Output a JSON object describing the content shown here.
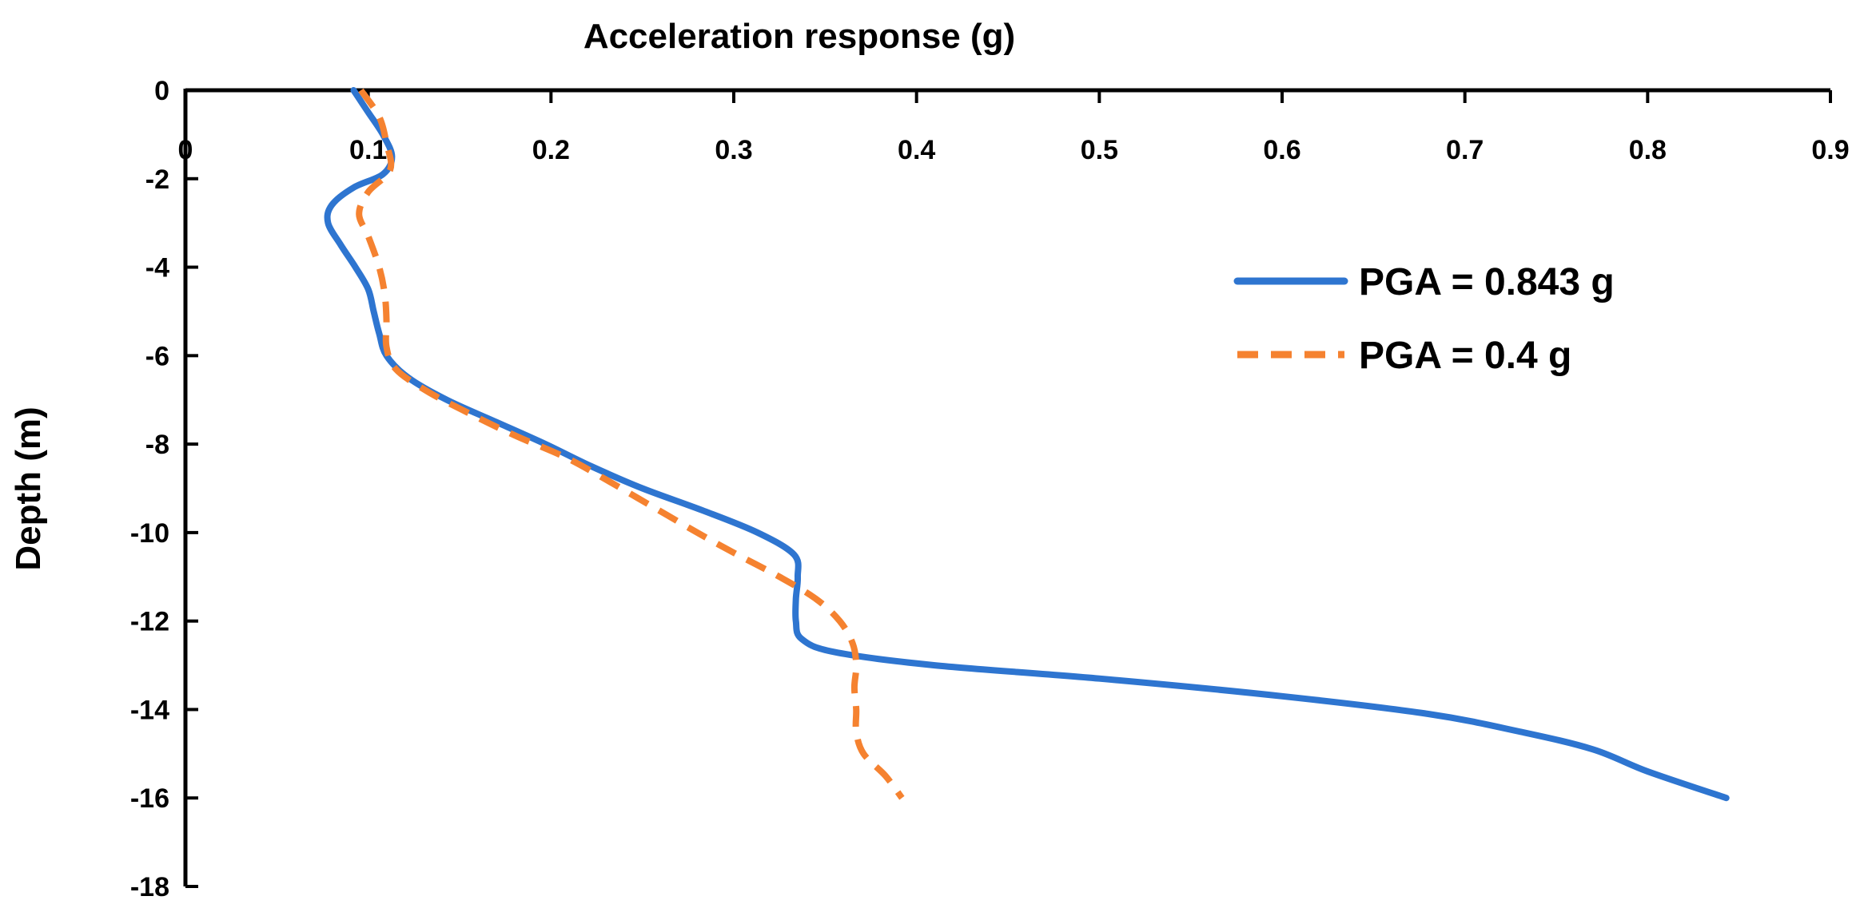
{
  "chart_data": {
    "type": "line",
    "title": "",
    "xlabel": "Acceleration response (g)",
    "ylabel": "Depth (m)",
    "xlim": [
      0,
      0.9
    ],
    "ylim": [
      -18,
      0
    ],
    "x_ticks": [
      0,
      0.1,
      0.2,
      0.3,
      0.4,
      0.5,
      0.6,
      0.7,
      0.8,
      0.9
    ],
    "x_tick_labels": [
      "0",
      "0.1",
      "0.2",
      "0.3",
      "0.4",
      "0.5",
      "0.6",
      "0.7",
      "0.8",
      "0.9"
    ],
    "y_ticks": [
      0,
      -2,
      -4,
      -6,
      -8,
      -10,
      -12,
      -14,
      -16,
      -18
    ],
    "y_tick_labels": [
      "0",
      "-2",
      "-4",
      "-6",
      "-8",
      "-10",
      "-12",
      "-14",
      "-16",
      "-18"
    ],
    "x_axis_position": "top",
    "grid": false,
    "legend_position": "right",
    "series": [
      {
        "name": "PGA = 0.843 g",
        "color": "#2E75D0",
        "style": "solid",
        "points": [
          [
            0.092,
            0.0
          ],
          [
            0.1,
            -0.5
          ],
          [
            0.108,
            -1.0
          ],
          [
            0.113,
            -1.5
          ],
          [
            0.108,
            -1.9
          ],
          [
            0.092,
            -2.2
          ],
          [
            0.08,
            -2.6
          ],
          [
            0.078,
            -3.0
          ],
          [
            0.085,
            -3.5
          ],
          [
            0.093,
            -4.0
          ],
          [
            0.1,
            -4.5
          ],
          [
            0.103,
            -5.0
          ],
          [
            0.106,
            -5.5
          ],
          [
            0.11,
            -6.0
          ],
          [
            0.122,
            -6.5
          ],
          [
            0.143,
            -7.0
          ],
          [
            0.17,
            -7.5
          ],
          [
            0.197,
            -8.0
          ],
          [
            0.222,
            -8.5
          ],
          [
            0.25,
            -9.0
          ],
          [
            0.283,
            -9.5
          ],
          [
            0.313,
            -10.0
          ],
          [
            0.333,
            -10.5
          ],
          [
            0.335,
            -11.0
          ],
          [
            0.334,
            -11.5
          ],
          [
            0.334,
            -12.0
          ],
          [
            0.337,
            -12.4
          ],
          [
            0.355,
            -12.7
          ],
          [
            0.41,
            -13.0
          ],
          [
            0.5,
            -13.3
          ],
          [
            0.6,
            -13.7
          ],
          [
            0.68,
            -14.1
          ],
          [
            0.73,
            -14.5
          ],
          [
            0.77,
            -14.9
          ],
          [
            0.8,
            -15.4
          ],
          [
            0.843,
            -16.0
          ]
        ]
      },
      {
        "name": "PGA = 0.4 g",
        "color": "#F58230",
        "style": "dashed",
        "points": [
          [
            0.096,
            0.0
          ],
          [
            0.106,
            -0.6
          ],
          [
            0.11,
            -1.2
          ],
          [
            0.112,
            -1.8
          ],
          [
            0.1,
            -2.3
          ],
          [
            0.095,
            -2.8
          ],
          [
            0.1,
            -3.3
          ],
          [
            0.106,
            -4.0
          ],
          [
            0.109,
            -4.6
          ],
          [
            0.11,
            -5.2
          ],
          [
            0.11,
            -5.8
          ],
          [
            0.115,
            -6.3
          ],
          [
            0.132,
            -6.8
          ],
          [
            0.155,
            -7.3
          ],
          [
            0.18,
            -7.8
          ],
          [
            0.208,
            -8.3
          ],
          [
            0.23,
            -8.8
          ],
          [
            0.255,
            -9.4
          ],
          [
            0.28,
            -10.0
          ],
          [
            0.302,
            -10.5
          ],
          [
            0.325,
            -11.0
          ],
          [
            0.345,
            -11.5
          ],
          [
            0.358,
            -12.0
          ],
          [
            0.365,
            -12.5
          ],
          [
            0.367,
            -13.0
          ],
          [
            0.366,
            -13.5
          ],
          [
            0.367,
            -14.0
          ],
          [
            0.367,
            -14.5
          ],
          [
            0.371,
            -15.0
          ],
          [
            0.383,
            -15.5
          ],
          [
            0.392,
            -16.0
          ]
        ]
      }
    ]
  }
}
